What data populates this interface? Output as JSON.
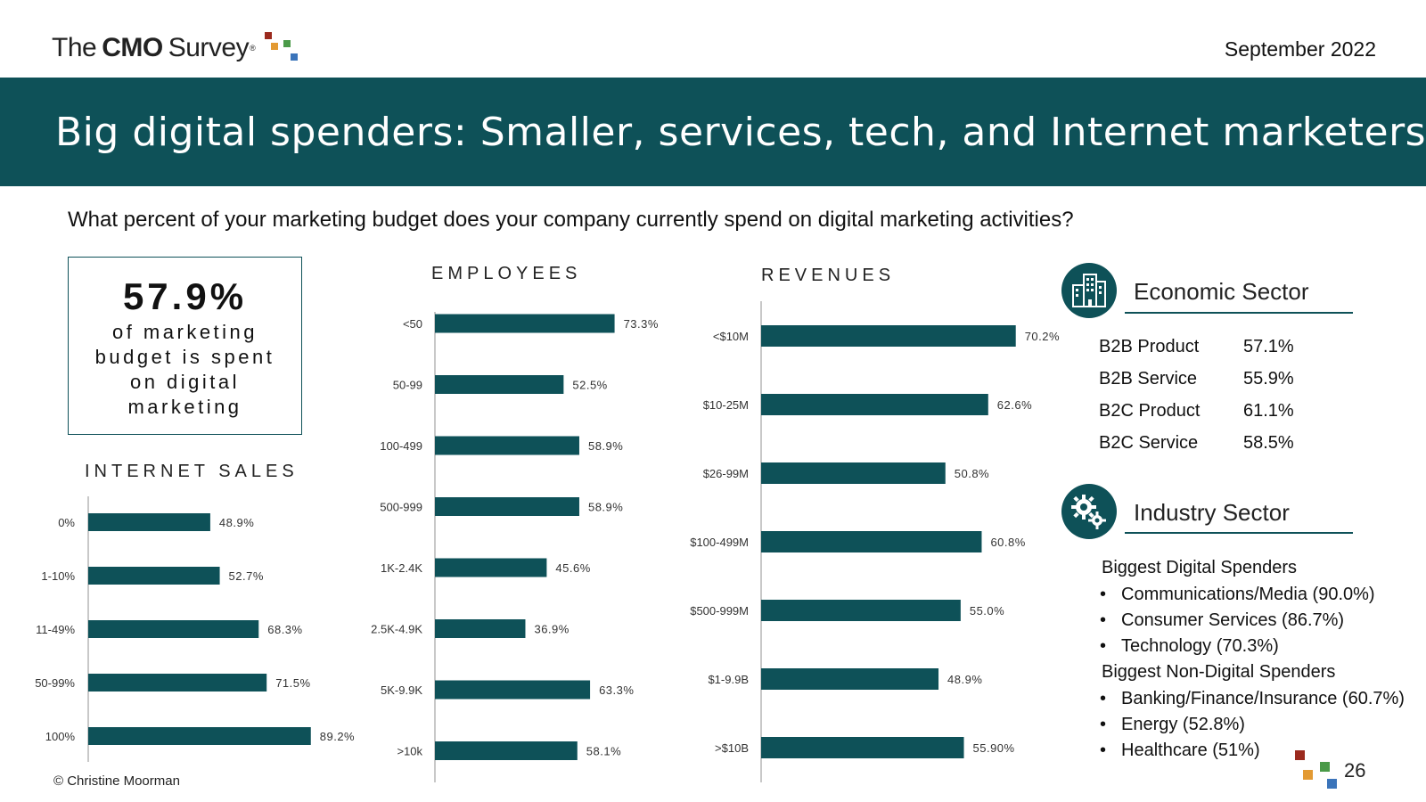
{
  "brand": {
    "logo": {
      "the": "The",
      "cmo": "CMO",
      "survey": "Survey",
      "reg": "®"
    },
    "colors": {
      "teal": "#0e5158",
      "red": "#9b2a1e",
      "orange": "#e39a33",
      "green": "#4a9a48",
      "blue": "#3b74ba"
    }
  },
  "header": {
    "date": "September 2022"
  },
  "title": "Big digital spenders: Smaller, services, tech, and Internet marketers",
  "question": "What percent of your marketing budget does your company currently spend on digital marketing activities?",
  "kpi": {
    "value": "57.9%",
    "text": "of marketing budget is spent on digital marketing"
  },
  "chart_data": [
    {
      "type": "bar",
      "orientation": "horizontal",
      "title": "INTERNET SALES",
      "categories": [
        "0%",
        "1-10%",
        "11-49%",
        "50-99%",
        "100%"
      ],
      "values": [
        48.9,
        52.7,
        68.3,
        71.5,
        89.2
      ],
      "labels": [
        "48.9%",
        "52.7%",
        "68.3%",
        "71.5%",
        "89.2%"
      ],
      "xlim": [
        0,
        100
      ]
    },
    {
      "type": "bar",
      "orientation": "horizontal",
      "title": "EMPLOYEES",
      "categories": [
        "<50",
        "50-99",
        "100-499",
        "500-999",
        "1K-2.4K",
        "2.5K-4.9K",
        "5K-9.9K",
        ">10k"
      ],
      "values": [
        73.3,
        52.5,
        58.9,
        58.9,
        45.6,
        36.9,
        63.3,
        58.1
      ],
      "labels": [
        "73.3%",
        "52.5%",
        "58.9%",
        "58.9%",
        "45.6%",
        "36.9%",
        "63.3%",
        "58.1%"
      ],
      "xlim": [
        0,
        100
      ]
    },
    {
      "type": "bar",
      "orientation": "horizontal",
      "title": "REVENUES",
      "categories": [
        "<$10M",
        "$10-25M",
        "$26-99M",
        "$100-499M",
        "$500-999M",
        "$1-9.9B",
        ">$10B"
      ],
      "values": [
        70.2,
        62.6,
        50.8,
        60.8,
        55.0,
        48.9,
        55.9
      ],
      "labels": [
        "70.2%",
        "62.6%",
        "50.8%",
        "60.8%",
        "55.0%",
        "48.9%",
        "55.90%"
      ],
      "xlim": [
        0,
        100
      ]
    }
  ],
  "economic_sector": {
    "title": "Economic Sector",
    "icon": "buildings-icon",
    "rows": [
      {
        "label": "B2B Product",
        "value": "57.1%"
      },
      {
        "label": "B2B Service",
        "value": "55.9%"
      },
      {
        "label": "B2C Product",
        "value": "61.1%"
      },
      {
        "label": "B2C Service",
        "value": "58.5%"
      }
    ]
  },
  "industry_sector": {
    "title": "Industry Sector",
    "icon": "gears-icon",
    "digital_heading": "Biggest Digital Spenders",
    "digital": [
      "Communications/Media (90.0%)",
      "Consumer Services (86.7%)",
      "Technology (70.3%)"
    ],
    "non_digital_heading": "Biggest Non-Digital Spenders",
    "non_digital": [
      "Banking/Finance/Insurance (60.7%)",
      "Energy (52.8%)",
      "Healthcare (51%)"
    ]
  },
  "footer": {
    "copyright": "© Christine Moorman",
    "page_number": "26"
  }
}
